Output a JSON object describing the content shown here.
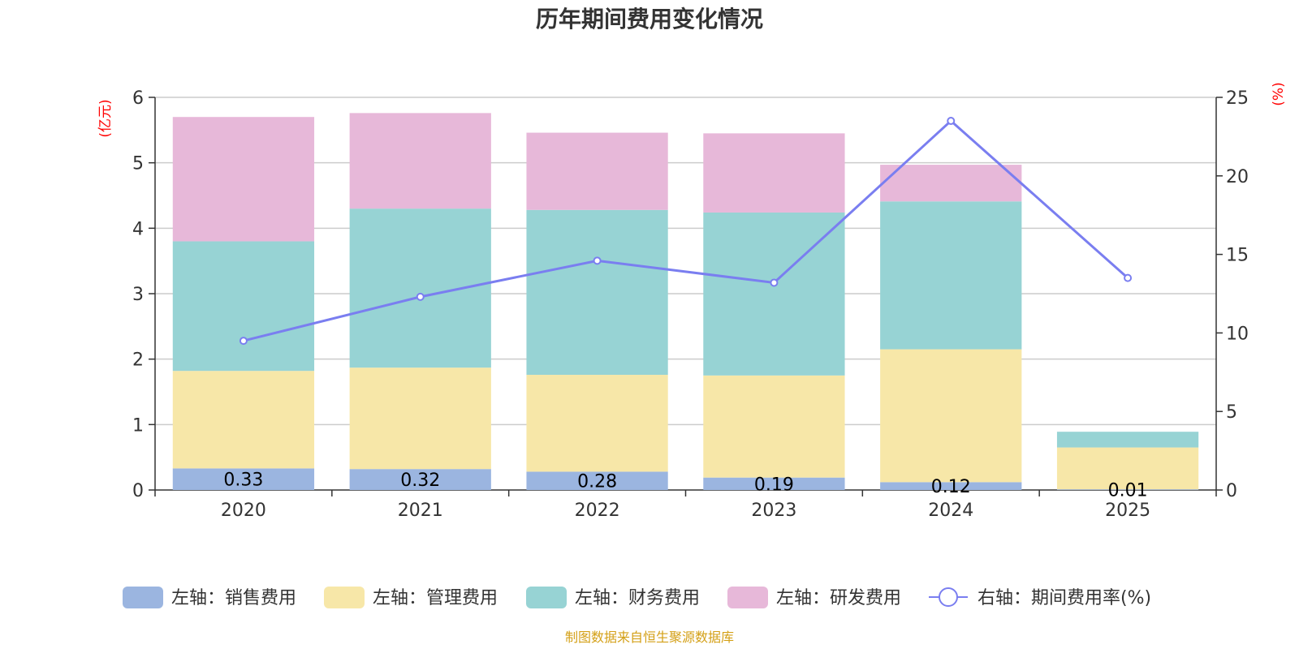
{
  "chart_data": {
    "type": "bar",
    "title": "历年期间费用变化情况",
    "categories": [
      "2020",
      "2021",
      "2022",
      "2023",
      "2024",
      "2025"
    ],
    "left_axis": {
      "unit": "(亿元)",
      "ylim": [
        0,
        6
      ],
      "ticks": [
        "0",
        "1",
        "2",
        "3",
        "4",
        "5",
        "6"
      ]
    },
    "right_axis": {
      "unit": "(%)",
      "ylim": [
        0,
        25
      ],
      "ticks": [
        "0",
        "5",
        "10",
        "15",
        "20",
        "25"
      ]
    },
    "series": [
      {
        "name": "左轴：销售费用",
        "kind": "bar",
        "axis": "left",
        "color": "#9bb5e0",
        "values": [
          0.33,
          0.32,
          0.28,
          0.19,
          0.12,
          0.01
        ],
        "labels": [
          "0.33",
          "0.32",
          "0.28",
          "0.19",
          "0.12",
          "0.01"
        ]
      },
      {
        "name": "左轴：管理费用",
        "kind": "bar",
        "axis": "left",
        "color": "#f7e7a8",
        "values": [
          1.49,
          1.55,
          1.48,
          1.56,
          2.03,
          0.64
        ]
      },
      {
        "name": "左轴：财务费用",
        "kind": "bar",
        "axis": "left",
        "color": "#97d3d4",
        "values": [
          1.98,
          2.43,
          2.52,
          2.49,
          2.26,
          0.24
        ]
      },
      {
        "name": "左轴：研发费用",
        "kind": "bar",
        "axis": "left",
        "color": "#e7b8d9",
        "values": [
          1.9,
          1.46,
          1.18,
          1.21,
          0.56,
          0.0
        ]
      },
      {
        "name": "右轴：期间费用率(%)",
        "kind": "line",
        "axis": "right",
        "color": "#7a7ef0",
        "values": [
          9.5,
          12.3,
          14.6,
          13.2,
          23.5,
          13.5
        ]
      }
    ],
    "legend_position": "bottom",
    "grid": true
  },
  "source_note": "制图数据来自恒生聚源数据库",
  "source_color": "#d4a017"
}
